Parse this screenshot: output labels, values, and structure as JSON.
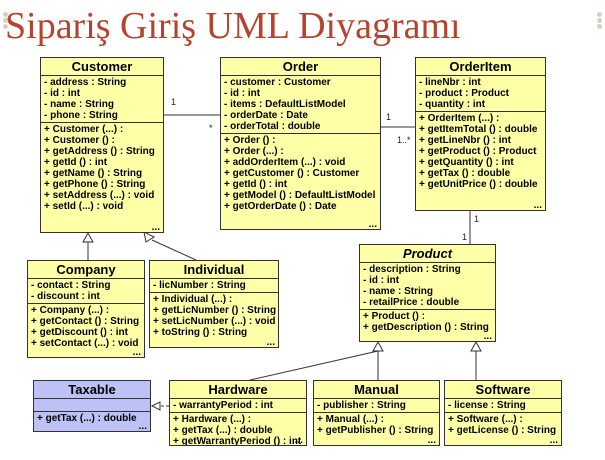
{
  "title": "Sipariş Giriş UML Diyagramı",
  "classes": {
    "customer": {
      "name": "Customer",
      "attributes": [
        "- address : String",
        "- id : int",
        "- name : String",
        "- phone : String"
      ],
      "operations": [
        "+ Customer (...) :",
        "+ Customer () :",
        "+ getAddress () : String",
        "+ getId () : int",
        "+ getName () : String",
        "+ getPhone () : String",
        "+ setAddress (...) : void",
        "+ setId (...) : void"
      ]
    },
    "order": {
      "name": "Order",
      "attributes": [
        "- customer : Customer",
        "- id : int",
        "- items : DefaultListModel",
        "- orderDate : Date",
        "- orderTotal : double"
      ],
      "operations": [
        "+ Order () :",
        "+ Order (...) :",
        "+ addOrderItem (...) : void",
        "+ getCustomer () : Customer",
        "+ getId () : int",
        "+ getModel () : DefaultListModel",
        "+ getOrderDate () : Date"
      ]
    },
    "orderitem": {
      "name": "OrderItem",
      "attributes": [
        "- lineNbr : int",
        "- product : Product",
        "- quantity : int"
      ],
      "operations": [
        "+ OrderItem (...) :",
        "+ getItemTotal () : double",
        "+ getLineNbr () : int",
        "+ getProduct () : Product",
        "+ getQuantity () : int",
        "+ getTax () : double",
        "+ getUnitPrice () : double"
      ]
    },
    "product": {
      "name": "Product",
      "attributes": [
        "- description : String",
        "- id : int",
        "- name : String",
        "- retailPrice : double"
      ],
      "operations": [
        "+ Product () :",
        "+ getDescription () : String"
      ]
    },
    "company": {
      "name": "Company",
      "attributes": [
        "- contact : String",
        "- discount : int"
      ],
      "operations": [
        "+ Company (...) :",
        "+ getContact () : String",
        "+ getDiscount () : int",
        "+ setContact (...) : void"
      ]
    },
    "individual": {
      "name": "Individual",
      "attributes": [
        "- licNumber : String"
      ],
      "operations": [
        "+ Individual (...) :",
        "+ getLicNumber () : String",
        "+ setLicNumber (...) : void",
        "+ toString () : String"
      ]
    },
    "taxable": {
      "name": "Taxable",
      "attributes": [],
      "operations": [
        "+ getTax (...) : double"
      ]
    },
    "hardware": {
      "name": "Hardware",
      "attributes": [
        "- warrantyPeriod : int"
      ],
      "operations": [
        "+ Hardware (...) :",
        "+ getTax (...) : double",
        "+ getWarrantyPeriod () : int"
      ]
    },
    "manual": {
      "name": "Manual",
      "attributes": [
        "- publisher : String"
      ],
      "operations": [
        "+ Manual (...) :",
        "+ getPublisher () : String"
      ]
    },
    "software": {
      "name": "Software",
      "attributes": [
        "- license : String"
      ],
      "operations": [
        "+ Software (...) :",
        "+ getLicense () : String"
      ]
    }
  },
  "ellipsis": "...",
  "multiplicities": {
    "customer_order_one": "1",
    "customer_order_many": "*",
    "order_item_one": "1",
    "order_item_many": "1..*",
    "item_product_one_top": "1",
    "item_product_one_bottom": "1"
  },
  "colors": {
    "title": "#b5442e",
    "class_fill": "#ffffa8",
    "interface_fill": "#bcc2f5",
    "line": "#333333"
  }
}
